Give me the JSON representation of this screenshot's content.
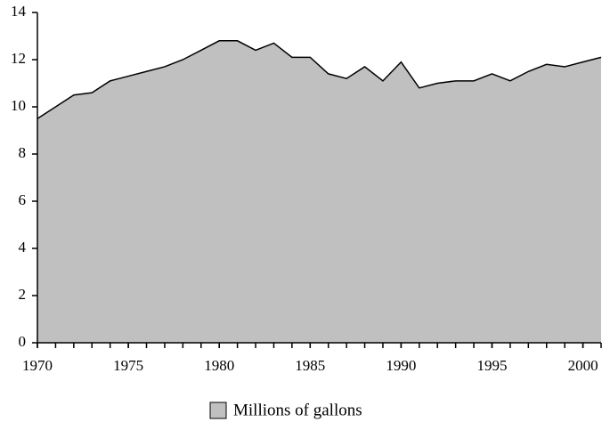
{
  "chart_data": {
    "type": "area",
    "x": [
      1970,
      1971,
      1972,
      1973,
      1974,
      1975,
      1976,
      1977,
      1978,
      1979,
      1980,
      1981,
      1982,
      1983,
      1984,
      1985,
      1986,
      1987,
      1988,
      1989,
      1990,
      1991,
      1992,
      1993,
      1994,
      1995,
      1996,
      1997,
      1998,
      1999,
      2000,
      2001
    ],
    "series": [
      {
        "name": "Millions of gallons",
        "color": "#c0c0c0",
        "values": [
          9.5,
          10.0,
          10.5,
          10.6,
          11.1,
          11.3,
          11.5,
          11.7,
          12.0,
          12.4,
          12.8,
          12.8,
          12.4,
          12.7,
          12.1,
          12.1,
          11.4,
          11.2,
          11.7,
          11.1,
          11.9,
          10.8,
          11.0,
          11.1,
          11.1,
          11.4,
          11.1,
          11.5,
          11.8,
          11.7,
          11.9,
          12.1
        ]
      }
    ],
    "xlim": [
      1970,
      2001
    ],
    "xticks": [
      1970,
      1975,
      1980,
      1985,
      1990,
      1995,
      2000
    ],
    "ylim": [
      0,
      14
    ],
    "yticks": [
      0,
      2,
      4,
      6,
      8,
      10,
      12,
      14
    ],
    "legend": "bottom"
  }
}
